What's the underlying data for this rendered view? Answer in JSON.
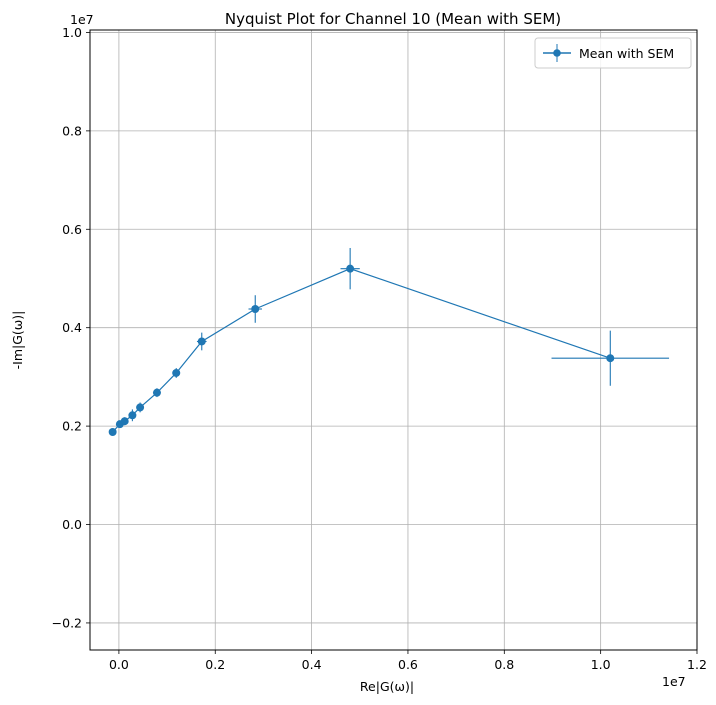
{
  "chart_data": {
    "type": "scatter",
    "title": "Nyquist Plot for Channel 10 (Mean with SEM)",
    "xlabel": "Re|G(ω)|",
    "ylabel": "-Im|G(ω)|",
    "x_offset_text": "1e7",
    "y_offset_text": "1e7",
    "xlim": [
      -0.06,
      1.2
    ],
    "ylim": [
      -0.255,
      1.005
    ],
    "x_ticks": [
      0.0,
      0.2,
      0.4,
      0.6,
      0.8,
      1.0,
      1.2
    ],
    "x_tick_labels": [
      "0.0",
      "0.2",
      "0.4",
      "0.6",
      "0.8",
      "1.0",
      "1.2"
    ],
    "y_ticks": [
      -0.2,
      0.0,
      0.2,
      0.4,
      0.6,
      0.8,
      1.0
    ],
    "y_tick_labels": [
      "−0.2",
      "0.0",
      "0.2",
      "0.4",
      "0.6",
      "0.8",
      "1.0"
    ],
    "grid": true,
    "legend": {
      "position": "top-right",
      "entries": [
        "Mean with SEM"
      ]
    },
    "series": [
      {
        "name": "Mean with SEM",
        "color": "#1f77b4",
        "x": [
          -0.013,
          0.002,
          0.012,
          0.028,
          0.044,
          0.079,
          0.119,
          0.172,
          0.283,
          0.48,
          1.02
        ],
        "y": [
          0.188,
          0.204,
          0.21,
          0.222,
          0.238,
          0.268,
          0.308,
          0.372,
          0.438,
          0.52,
          0.338
        ],
        "x_err": [
          0.003,
          0.003,
          0.003,
          0.004,
          0.004,
          0.006,
          0.008,
          0.01,
          0.014,
          0.02,
          0.122
        ],
        "y_err": [
          0.005,
          0.006,
          0.008,
          0.012,
          0.01,
          0.009,
          0.01,
          0.018,
          0.028,
          0.042,
          0.056
        ]
      }
    ]
  }
}
